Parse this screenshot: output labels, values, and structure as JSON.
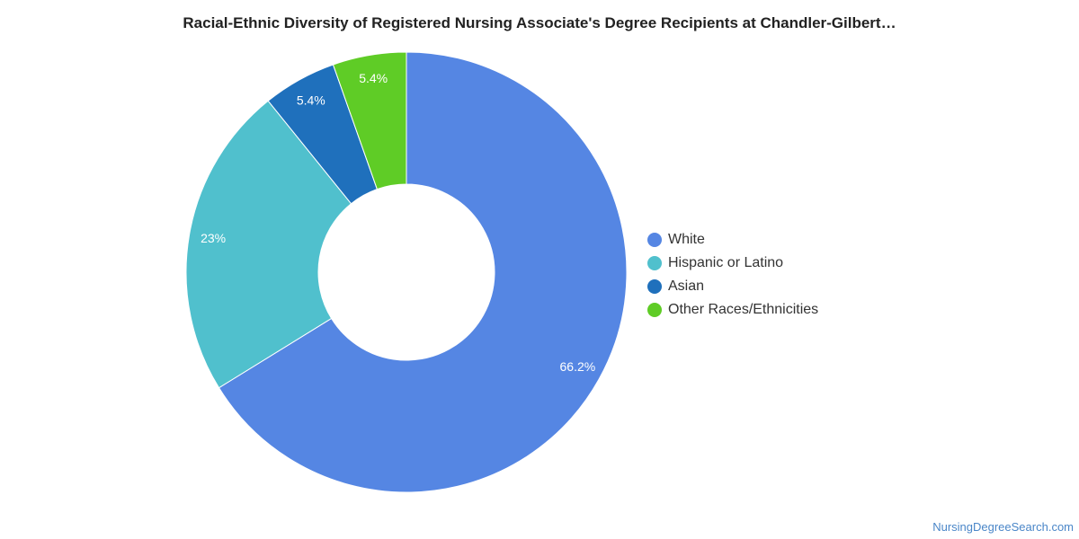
{
  "chart_data": {
    "type": "pie",
    "title": "Racial-Ethnic Diversity of Registered Nursing Associate's Degree Recipients at Chandler-Gilbert…",
    "donut": true,
    "categories": [
      "White",
      "Hispanic or Latino",
      "Asian",
      "Other Races/Ethnicities"
    ],
    "values": [
      66.2,
      23,
      5.4,
      5.4
    ],
    "value_labels": [
      "66.2%",
      "23%",
      "5.4%",
      "5.4%"
    ],
    "colors": [
      "#5586e3",
      "#50c0cd",
      "#1f70bc",
      "#5fcc26"
    ],
    "legend_position": "right"
  },
  "credit": "NursingDegreeSearch.com"
}
